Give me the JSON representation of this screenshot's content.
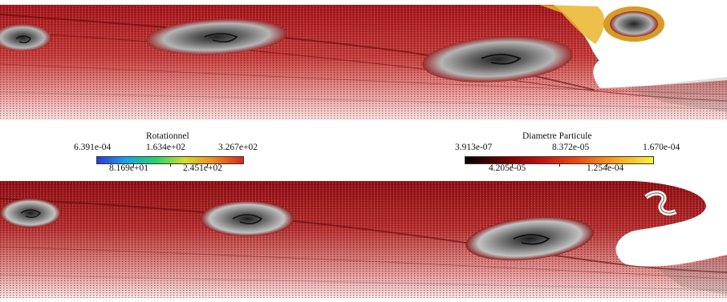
{
  "legend_left": {
    "title": "Rotationnel",
    "upper_labels": [
      "6.391e-04",
      "1.634e+02",
      "3.267e+02"
    ],
    "lower_labels": [
      "8.169e+01",
      "2.451e+02"
    ],
    "colormap": [
      "#2a3bd8",
      "#1aa3e8",
      "#21d46a",
      "#d4dc2a",
      "#f08a1c",
      "#d8251e"
    ]
  },
  "legend_right": {
    "title": "Diametre  Particule",
    "upper_labels": [
      "3.913e-07",
      "8.372e-05",
      "1.670e-04"
    ],
    "lower_labels": [
      "4.205e-05",
      "1.254e-04"
    ],
    "colormap": [
      "#000000",
      "#6b0000",
      "#c41010",
      "#ee4a12",
      "#f7a51a",
      "#f6f23a"
    ]
  },
  "panels": {
    "top_colors": {
      "dense": "#b0171b",
      "mid": "#d24a45",
      "sparse": "#e9a7a4",
      "vortex": "#3a3a3a"
    },
    "bottom_colors": {
      "dense": "#9c1015",
      "mid": "#c8403d",
      "sparse": "#eca9a6",
      "vortex": "#333333"
    }
  }
}
